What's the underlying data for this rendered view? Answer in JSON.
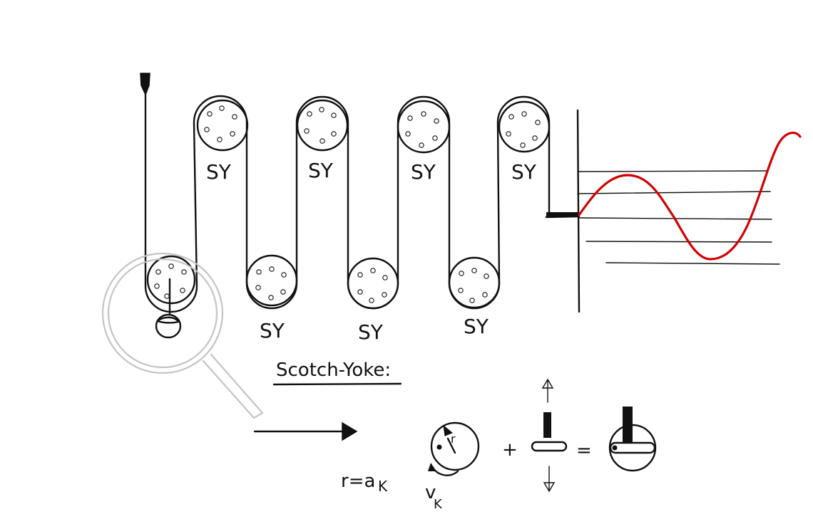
{
  "pulley_label": "SY",
  "upper_pulley_labels": [
    "SY",
    "SY",
    "SY",
    "SY"
  ],
  "lower_pulley_labels": [
    "SY",
    "SY",
    "SY"
  ],
  "section_title": "Scotch-Yoke:",
  "formula_r": "r=a",
  "formula_r_sub": "K",
  "velocity_label": "v",
  "velocity_sub": "K",
  "radius_label": "r",
  "plus_sign": "+",
  "equals_sign": "=",
  "colors": {
    "ink": "#111111",
    "wave": "#d40000",
    "magnifier": "#c4c4c4"
  }
}
